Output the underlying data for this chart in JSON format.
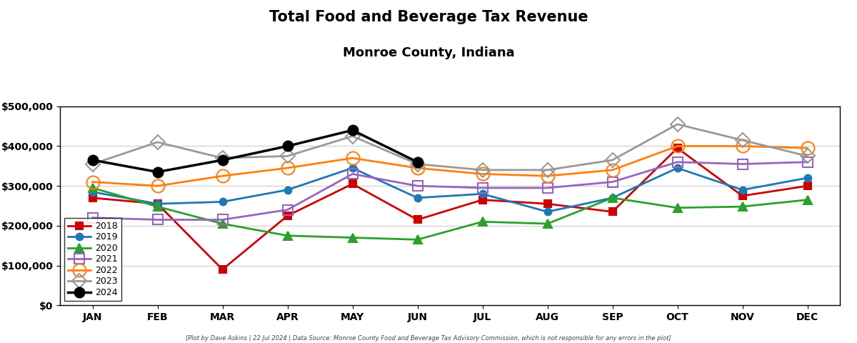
{
  "title_line1": "Total Food and Beverage Tax Revenue",
  "title_line2": "Monroe County, Indiana",
  "footnote": "[Plot by Dave Askins | 22 Jul 2024 | Data Source: Monroe County Food and Beverage Tax Advisory Commission, which is not responsible for any errors in the plot]",
  "months": [
    "JAN",
    "FEB",
    "MAR",
    "APR",
    "MAY",
    "JUN",
    "JUL",
    "AUG",
    "SEP",
    "OCT",
    "NOV",
    "DEC"
  ],
  "series": {
    "2018": {
      "color": "#CC0000",
      "marker": "s",
      "mfc": "#CC0000",
      "mec": "#CC0000",
      "linewidth": 2.0,
      "markersize": 7,
      "values": [
        270000,
        255000,
        90000,
        225000,
        305000,
        215000,
        265000,
        255000,
        235000,
        395000,
        275000,
        300000
      ]
    },
    "2019": {
      "color": "#1F77B4",
      "marker": "o",
      "mfc": "#1F77B4",
      "mec": "#1F77B4",
      "linewidth": 2.0,
      "markersize": 7,
      "values": [
        285000,
        255000,
        260000,
        290000,
        345000,
        270000,
        280000,
        235000,
        270000,
        345000,
        290000,
        320000
      ]
    },
    "2020": {
      "color": "#2CA02C",
      "marker": "^",
      "mfc": "#2CA02C",
      "mec": "#2CA02C",
      "linewidth": 2.0,
      "markersize": 8,
      "values": [
        295000,
        248000,
        205000,
        175000,
        170000,
        165000,
        210000,
        205000,
        270000,
        245000,
        248000,
        265000
      ]
    },
    "2021": {
      "color": "#9467BD",
      "marker": "s",
      "mfc": "none",
      "mec": "#9467BD",
      "linewidth": 2.0,
      "markersize": 10,
      "values": [
        220000,
        215000,
        215000,
        240000,
        330000,
        300000,
        295000,
        295000,
        310000,
        360000,
        355000,
        360000
      ]
    },
    "2022": {
      "color": "#FF7F0E",
      "marker": "o",
      "mfc": "none",
      "mec": "#FF7F0E",
      "linewidth": 2.0,
      "markersize": 13,
      "values": [
        310000,
        300000,
        325000,
        345000,
        370000,
        345000,
        330000,
        325000,
        340000,
        400000,
        400000,
        395000
      ]
    },
    "2023": {
      "color": "#999999",
      "marker": "D",
      "mfc": "none",
      "mec": "#999999",
      "linewidth": 2.0,
      "markersize": 10,
      "values": [
        355000,
        410000,
        370000,
        375000,
        425000,
        355000,
        340000,
        340000,
        365000,
        455000,
        415000,
        375000
      ]
    },
    "2024": {
      "color": "#000000",
      "marker": "o",
      "mfc": "#000000",
      "mec": "#000000",
      "linewidth": 2.5,
      "markersize": 10,
      "values": [
        365000,
        335000,
        365000,
        400000,
        440000,
        360000,
        null,
        null,
        null,
        null,
        null,
        null
      ]
    }
  },
  "series_order": [
    "2018",
    "2019",
    "2020",
    "2021",
    "2022",
    "2023",
    "2024"
  ],
  "ylim": [
    0,
    500000
  ],
  "yticks": [
    0,
    100000,
    200000,
    300000,
    400000,
    500000
  ],
  "ytick_labels": [
    "$0",
    "$100,000",
    "$200,000",
    "$300,000",
    "$400,000",
    "$500,000"
  ]
}
